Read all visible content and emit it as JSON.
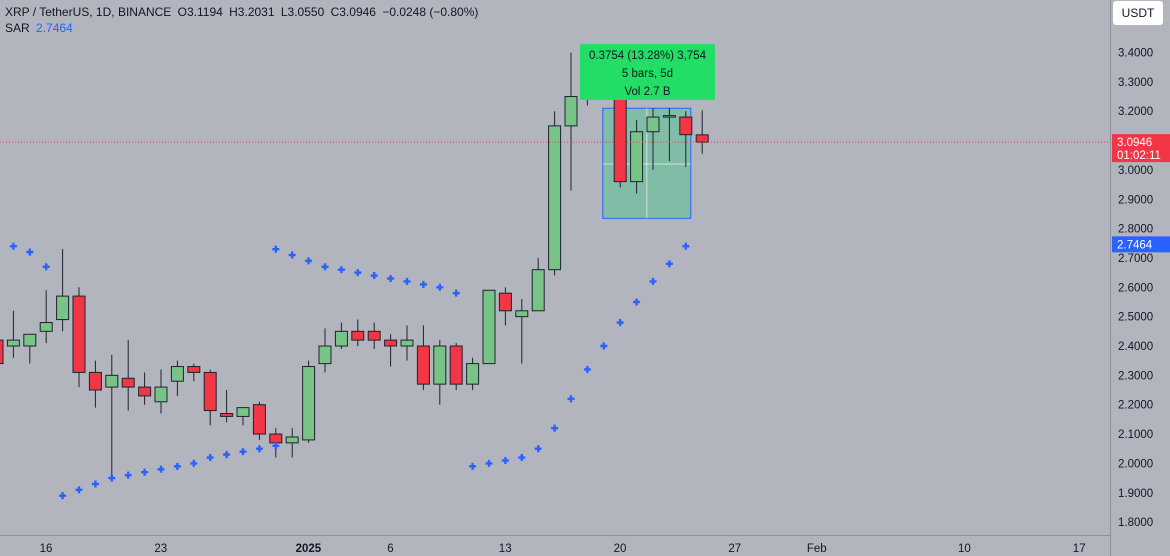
{
  "legend": {
    "symbol": "XRP / TetherUS, 1D, BINANCE",
    "open": "O3.1194",
    "high": "H3.2031",
    "low": "L3.0550",
    "close": "C3.0946",
    "change": "−0.0248 (−0.80%)",
    "sar_label": "SAR",
    "sar_value": "2.7464"
  },
  "currency_button": "USDT",
  "price_tag": {
    "price": "3.0946",
    "countdown": "01:02:11"
  },
  "sar_tag": "2.7464",
  "measure": {
    "line1": "0.3754 (13.28%) 3,754",
    "line2": "5 bars, 5d",
    "line3": "Vol 2.7 B"
  },
  "colors": {
    "background": "#b2b5be",
    "up": "#78c487",
    "down": "#f23645",
    "sar": "#2962ff",
    "measure_box": "#26c97a",
    "measure_label": "#22dd66"
  },
  "chart_data": {
    "type": "candlestick",
    "ylim": [
      1.75,
      3.47
    ],
    "y_ticks": [
      "1.8000",
      "1.9000",
      "2.0000",
      "2.1000",
      "2.2000",
      "2.3000",
      "2.4000",
      "2.5000",
      "2.6000",
      "2.7000",
      "2.8000",
      "2.9000",
      "3.0000",
      "3.1000",
      "3.2000",
      "3.3000",
      "3.4000"
    ],
    "x_ticks": [
      {
        "label": "16",
        "day": 0,
        "bold": false
      },
      {
        "label": "23",
        "day": 7,
        "bold": false
      },
      {
        "label": "2025",
        "day": 16,
        "bold": true
      },
      {
        "label": "6",
        "day": 21,
        "bold": false
      },
      {
        "label": "13",
        "day": 28,
        "bold": false
      },
      {
        "label": "20",
        "day": 35,
        "bold": false
      },
      {
        "label": "27",
        "day": 42,
        "bold": false
      },
      {
        "label": "Feb",
        "day": 47,
        "bold": false
      },
      {
        "label": "10",
        "day": 56,
        "bold": false
      },
      {
        "label": "17",
        "day": 63,
        "bold": false
      }
    ],
    "candles": [
      {
        "o": 2.42,
        "h": 2.46,
        "l": 2.33,
        "c": 2.34
      },
      {
        "o": 2.4,
        "h": 2.52,
        "l": 2.36,
        "c": 2.42
      },
      {
        "o": 2.4,
        "h": 2.44,
        "l": 2.34,
        "c": 2.44
      },
      {
        "o": 2.45,
        "h": 2.59,
        "l": 2.41,
        "c": 2.48
      },
      {
        "o": 2.49,
        "h": 2.73,
        "l": 2.45,
        "c": 2.57
      },
      {
        "o": 2.57,
        "h": 2.6,
        "l": 2.26,
        "c": 2.31
      },
      {
        "o": 2.31,
        "h": 2.35,
        "l": 2.19,
        "c": 2.25
      },
      {
        "o": 2.26,
        "h": 2.37,
        "l": 1.95,
        "c": 2.3
      },
      {
        "o": 2.29,
        "h": 2.42,
        "l": 2.18,
        "c": 2.26
      },
      {
        "o": 2.26,
        "h": 2.31,
        "l": 2.2,
        "c": 2.23
      },
      {
        "o": 2.21,
        "h": 2.32,
        "l": 2.17,
        "c": 2.26
      },
      {
        "o": 2.28,
        "h": 2.35,
        "l": 2.23,
        "c": 2.33
      },
      {
        "o": 2.33,
        "h": 2.34,
        "l": 2.28,
        "c": 2.31
      },
      {
        "o": 2.31,
        "h": 2.32,
        "l": 2.13,
        "c": 2.18
      },
      {
        "o": 2.17,
        "h": 2.25,
        "l": 2.14,
        "c": 2.16
      },
      {
        "o": 2.16,
        "h": 2.19,
        "l": 2.13,
        "c": 2.19
      },
      {
        "o": 2.2,
        "h": 2.21,
        "l": 2.08,
        "c": 2.1
      },
      {
        "o": 2.1,
        "h": 2.12,
        "l": 2.02,
        "c": 2.07
      },
      {
        "o": 2.07,
        "h": 2.12,
        "l": 2.02,
        "c": 2.09
      },
      {
        "o": 2.08,
        "h": 2.35,
        "l": 2.07,
        "c": 2.33
      },
      {
        "o": 2.34,
        "h": 2.46,
        "l": 2.31,
        "c": 2.4
      },
      {
        "o": 2.4,
        "h": 2.48,
        "l": 2.39,
        "c": 2.45
      },
      {
        "o": 2.45,
        "h": 2.49,
        "l": 2.4,
        "c": 2.42
      },
      {
        "o": 2.45,
        "h": 2.48,
        "l": 2.39,
        "c": 2.42
      },
      {
        "o": 2.42,
        "h": 2.44,
        "l": 2.33,
        "c": 2.4
      },
      {
        "o": 2.4,
        "h": 2.47,
        "l": 2.35,
        "c": 2.42
      },
      {
        "o": 2.4,
        "h": 2.47,
        "l": 2.25,
        "c": 2.27
      },
      {
        "o": 2.27,
        "h": 2.42,
        "l": 2.2,
        "c": 2.4
      },
      {
        "o": 2.4,
        "h": 2.41,
        "l": 2.25,
        "c": 2.27
      },
      {
        "o": 2.27,
        "h": 2.36,
        "l": 2.25,
        "c": 2.34
      },
      {
        "o": 2.34,
        "h": 2.59,
        "l": 2.34,
        "c": 2.59
      },
      {
        "o": 2.58,
        "h": 2.6,
        "l": 2.47,
        "c": 2.52
      },
      {
        "o": 2.5,
        "h": 2.56,
        "l": 2.34,
        "c": 2.52
      },
      {
        "o": 2.52,
        "h": 2.7,
        "l": 2.52,
        "c": 2.66
      },
      {
        "o": 2.66,
        "h": 3.2,
        "l": 2.64,
        "c": 3.15
      },
      {
        "o": 3.15,
        "h": 3.4,
        "l": 2.93,
        "c": 3.25
      },
      {
        "o": 3.25,
        "h": 3.32,
        "l": 3.22,
        "c": 3.29
      },
      {
        "o": 3.29,
        "h": 3.29,
        "l": 3.26,
        "c": 3.27
      },
      {
        "o": 3.27,
        "h": 3.29,
        "l": 2.94,
        "c": 2.96
      },
      {
        "o": 2.96,
        "h": 3.17,
        "l": 2.92,
        "c": 3.13
      },
      {
        "o": 3.13,
        "h": 3.21,
        "l": 3.0,
        "c": 3.18
      },
      {
        "o": 3.18,
        "h": 3.21,
        "l": 3.03,
        "c": 3.185
      },
      {
        "o": 3.18,
        "h": 3.2,
        "l": 3.01,
        "c": 3.12
      },
      {
        "o": 3.1194,
        "h": 3.2031,
        "l": 3.055,
        "c": 3.0946
      }
    ],
    "sar": [
      [
        1,
        2.74
      ],
      [
        2,
        2.72
      ],
      [
        3,
        2.67
      ],
      [
        4,
        1.89
      ],
      [
        5,
        1.91
      ],
      [
        6,
        1.93
      ],
      [
        7,
        1.95
      ],
      [
        8,
        1.96
      ],
      [
        9,
        1.97
      ],
      [
        10,
        1.98
      ],
      [
        11,
        1.99
      ],
      [
        12,
        2.0
      ],
      [
        13,
        2.02
      ],
      [
        14,
        2.03
      ],
      [
        15,
        2.04
      ],
      [
        16,
        2.05
      ],
      [
        17,
        2.06
      ],
      [
        17,
        2.73
      ],
      [
        18,
        2.71
      ],
      [
        19,
        2.69
      ],
      [
        20,
        2.67
      ],
      [
        21,
        2.66
      ],
      [
        22,
        2.65
      ],
      [
        23,
        2.64
      ],
      [
        24,
        2.63
      ],
      [
        25,
        2.62
      ],
      [
        26,
        2.61
      ],
      [
        27,
        2.6
      ],
      [
        28,
        2.58
      ],
      [
        29,
        1.99
      ],
      [
        30,
        2.0
      ],
      [
        31,
        2.01
      ],
      [
        32,
        2.02
      ],
      [
        33,
        2.05
      ],
      [
        34,
        2.12
      ],
      [
        35,
        2.22
      ],
      [
        36,
        2.32
      ],
      [
        37,
        2.4
      ],
      [
        38,
        2.48
      ],
      [
        39,
        2.55
      ],
      [
        40,
        2.62
      ],
      [
        41,
        2.68
      ],
      [
        42,
        2.74
      ]
    ]
  }
}
